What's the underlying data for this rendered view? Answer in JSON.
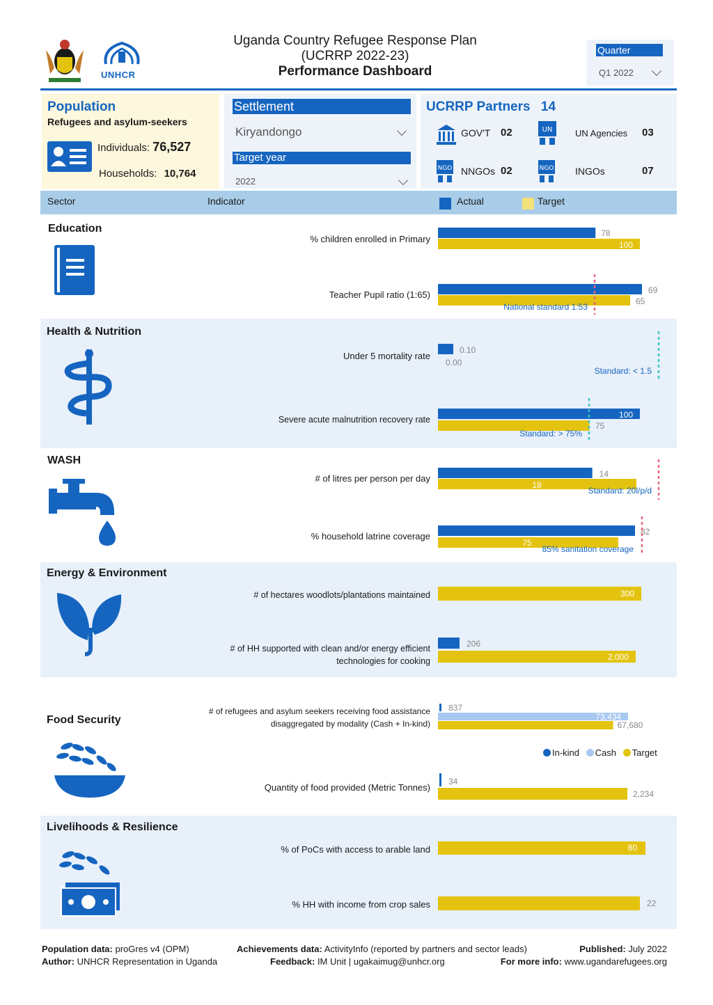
{
  "header": {
    "title_line1": "Uganda Country Refugee Response Plan",
    "title_line2": "(UCRRP 2022-23)",
    "title_line3": "Performance Dashboard",
    "logo_text": "UNHCR",
    "quarter_label": "Quarter",
    "quarter_value": "Q1 2022"
  },
  "population": {
    "title": "Population",
    "subtitle": "Refugees and asylum-seekers",
    "individuals_label": "Individuals:",
    "individuals_value": "76,527",
    "households_label": "Households:",
    "households_value": "10,764"
  },
  "filters": {
    "settlement_label": "Settlement",
    "settlement_value": "Kiryandongo",
    "target_year_label": "Target year",
    "target_year_value": "2022"
  },
  "partners": {
    "title": "UCRRP Partners",
    "total": "14",
    "items": [
      {
        "label": "GOV'T",
        "value": "02",
        "icon": "government-building-icon"
      },
      {
        "label": "UN Agencies",
        "value": "03",
        "icon": "un-agency-icon"
      },
      {
        "label": "NNGOs",
        "value": "02",
        "icon": "ngo-icon"
      },
      {
        "label": "INGOs",
        "value": "07",
        "icon": "ngo-icon"
      }
    ]
  },
  "columns": {
    "sector": "Sector",
    "indicator": "Indicator",
    "actual": "Actual",
    "target": "Target"
  },
  "colors": {
    "actual": "#1565c0",
    "target": "#e3c30f",
    "cash": "#a8c8f0",
    "band": "#e8f0fa",
    "standard_red": "#e8647a",
    "standard_teal": "#3cc4c4"
  },
  "chart_data": {
    "type": "bar",
    "sectors": [
      {
        "name": "Education",
        "icon": "book-icon",
        "indicators": [
          {
            "label": "% children enrolled in Primary",
            "actual": 78,
            "target": 100,
            "actual_label": "78",
            "target_label": "100"
          },
          {
            "label": "Teacher Pupil ratio (1:65)",
            "actual": 69,
            "target": 65,
            "actual_label": "69",
            "target_label": "65",
            "standard_label": "National standard 1:53"
          }
        ]
      },
      {
        "name": "Health & Nutrition",
        "icon": "health-caduceus-icon",
        "indicators": [
          {
            "label": "Under 5 mortality rate",
            "actual": 0.1,
            "target": 0.0,
            "actual_label": "0.10",
            "target_label": "0.00",
            "standard_label": "Standard: < 1.5"
          },
          {
            "label": "Severe acute malnutrition recovery rate",
            "actual": 100,
            "target": 75,
            "actual_label": "100",
            "target_label": "75",
            "standard_label": "Standard: > 75%"
          }
        ]
      },
      {
        "name": "WASH",
        "icon": "water-tap-icon",
        "indicators": [
          {
            "label": "# of litres per person per day",
            "actual": 14,
            "target": 18,
            "actual_label": "14",
            "target_label": "18",
            "standard_label": "Standard: 20l/p/d"
          },
          {
            "label": "% household latrine coverage",
            "actual": 82,
            "target": 75,
            "actual_label": "82",
            "target_label": "75",
            "standard_label": "85% sanitation coverage"
          }
        ]
      },
      {
        "name": "Energy & Environment",
        "icon": "plant-icon",
        "indicators": [
          {
            "label": "# of hectares woodlots/plantations maintained",
            "actual": 0,
            "target": 300,
            "target_label": "300"
          },
          {
            "label": "# of HH supported with clean and/or energy efficient technologies for cooking",
            "actual": 206,
            "target": 2000,
            "actual_label": "206",
            "target_label": "2,000"
          }
        ]
      },
      {
        "name": "Food Security",
        "icon": "food-bowl-icon",
        "indicators": [
          {
            "label": "# of refugees and asylum seekers receiving food assistance disaggregated by modality (Cash + In-kind)",
            "inkind": 837,
            "cash": 73434,
            "target": 67680,
            "inkind_label": "837",
            "cash_label": "73,434",
            "target_label": "67,680"
          },
          {
            "label": "Quantity of food provided (Metric Tonnes)",
            "actual": 34,
            "target": 2234,
            "actual_label": "34",
            "target_label": "2,234"
          }
        ],
        "legend": [
          "In-kind",
          "Cash",
          "Target"
        ]
      },
      {
        "name": "Livelihoods & Resilience",
        "icon": "money-grain-icon",
        "indicators": [
          {
            "label": "% of PoCs with access to arable land",
            "actual": 0,
            "target": 80,
            "target_label": "80"
          },
          {
            "label": "% HH with income from crop sales",
            "actual": 0,
            "target": 22,
            "target_label": "22"
          }
        ]
      }
    ]
  },
  "footer": {
    "pop_data_label": "Population data:",
    "pop_data_value": "proGres v4 (OPM)",
    "author_label": "Author:",
    "author_value": "UNHCR Representation in Uganda",
    "achievements_label": "Achievements data:",
    "achievements_value": "ActivityInfo (reported by partners and sector leads)",
    "feedback_label": "Feedback:",
    "feedback_value": "IM Unit | ugakaimug@unhcr.org",
    "published_label": "Published:",
    "published_value": "July 2022",
    "more_info_label": "For more info:",
    "more_info_value": "www.ugandarefugees.org"
  }
}
